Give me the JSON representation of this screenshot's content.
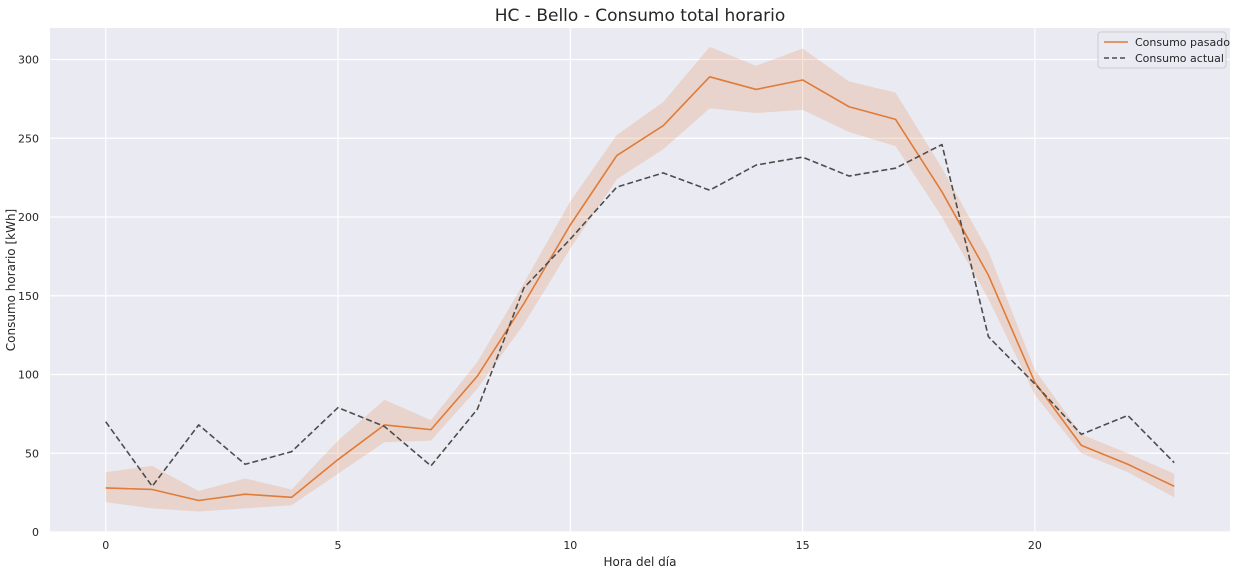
{
  "chart_data": {
    "type": "line",
    "title": "HC - Bello - Consumo total horario",
    "xlabel": "Hora del día",
    "ylabel": "Consumo horario [kWh]",
    "xlim": [
      -1.2,
      24.2
    ],
    "ylim": [
      0,
      320
    ],
    "xticks": [
      0,
      5,
      10,
      15,
      20
    ],
    "yticks": [
      0,
      50,
      100,
      150,
      200,
      250,
      300
    ],
    "grid": true,
    "legend_position": "top-right",
    "x": [
      0,
      1,
      2,
      3,
      4,
      5,
      6,
      7,
      8,
      9,
      10,
      11,
      12,
      13,
      14,
      15,
      16,
      17,
      18,
      19,
      20,
      21,
      22,
      23
    ],
    "series": [
      {
        "name": "Consumo pasado",
        "color": "#e07b39",
        "style": "solid",
        "values": [
          28,
          27,
          20,
          24,
          22,
          46,
          68,
          65,
          99,
          145,
          195,
          239,
          258,
          289,
          281,
          287,
          270,
          262,
          216,
          163,
          95,
          55,
          43,
          29
        ],
        "lower": [
          19,
          15,
          13,
          15,
          17,
          37,
          57,
          58,
          91,
          132,
          180,
          224,
          243,
          269,
          266,
          268,
          254,
          245,
          200,
          148,
          87,
          50,
          38,
          22
        ],
        "upper": [
          38,
          42,
          26,
          34,
          27,
          58,
          84,
          71,
          108,
          158,
          210,
          252,
          273,
          308,
          296,
          307,
          286,
          279,
          231,
          178,
          103,
          62,
          50,
          37
        ]
      },
      {
        "name": "Consumo actual",
        "color": "#4d4d4d",
        "style": "dashed",
        "values": [
          70,
          29,
          68,
          43,
          51,
          79,
          67,
          42,
          78,
          155,
          186,
          219,
          228,
          217,
          233,
          238,
          226,
          231,
          246,
          124,
          94,
          62,
          74,
          44
        ]
      }
    ]
  }
}
